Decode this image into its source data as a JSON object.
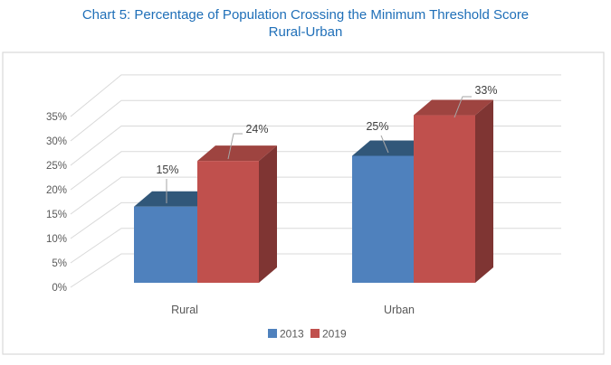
{
  "chart_data": {
    "type": "bar",
    "projection": "3d",
    "title": "Chart 5: Percentage of Population Crossing the Minimum Threshold Score",
    "subtitle": "Rural-Urban",
    "title_color": "#1F6FB8",
    "categories": [
      "Rural",
      "Urban"
    ],
    "series": [
      {
        "name": "2013",
        "values": [
          15,
          25
        ],
        "labels": [
          "15%",
          "25%"
        ],
        "color": "#4F81BD",
        "top_color": "#315779",
        "side_color": "#27456A"
      },
      {
        "name": "2019",
        "values": [
          24,
          33
        ],
        "labels": [
          "24%",
          "33%"
        ],
        "color": "#C0504D",
        "top_color": "#9E4440",
        "side_color": "#7F3533"
      }
    ],
    "y_axis": {
      "tick_labels": [
        "0%",
        "5%",
        "10%",
        "15%",
        "20%",
        "25%",
        "30%",
        "35%"
      ],
      "min": 0,
      "max": 35,
      "step": 5,
      "unit": "%"
    },
    "legend": {
      "position": "bottom",
      "items": [
        "2013",
        "2019"
      ]
    },
    "grid": true,
    "text_color": "#595959",
    "label_color": "#404040",
    "leader_color": "#A6A6A6",
    "gridline_color": "#D9D9D9",
    "frame_color": "#D9D9D9",
    "background": "#FFFFFF"
  }
}
